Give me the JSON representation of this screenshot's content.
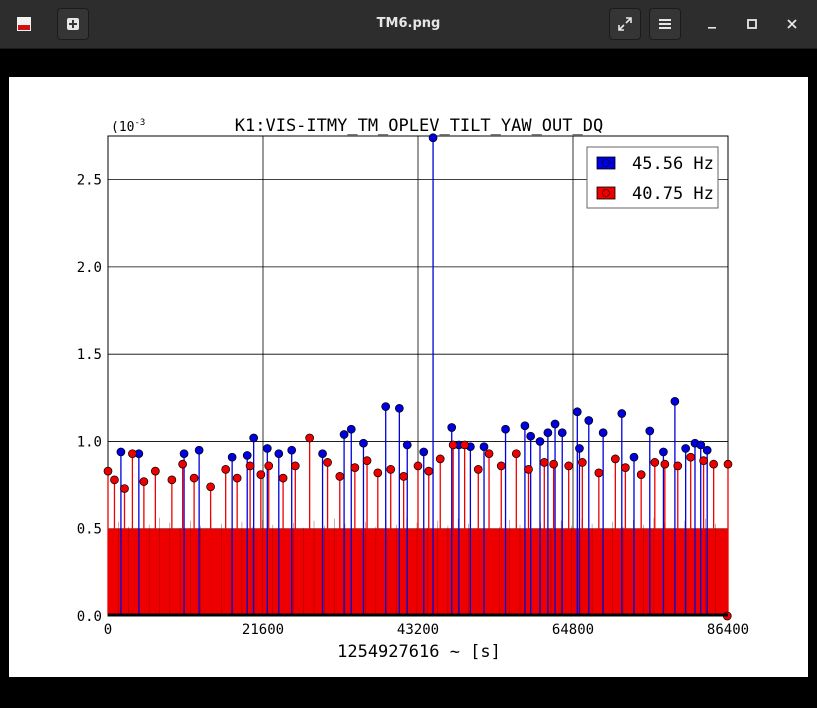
{
  "window": {
    "title": "TM6.png",
    "buttons": {
      "image_icon": "image-icon",
      "new": "plus-box-icon",
      "fullscreen": "expand-icon",
      "menu": "hamburger-icon",
      "minimize": "minimize-icon",
      "maximize": "maximize-icon",
      "close": "close-icon"
    }
  },
  "colors": {
    "titlebar": "#2d2d2d",
    "viewer_background": "#000000",
    "series_blue": "#0000dd",
    "series_red": "#ee0000"
  },
  "chart_data": {
    "type": "scatter",
    "subtype": "stem",
    "title": "K1:VIS-ITMY_TM_OPLEV_TILT_YAW_OUT_DQ",
    "xlabel": "1254927616 ~ [s]",
    "ylabel": "",
    "y_scale_label": "(10",
    "y_scale_exp": "-3",
    "xlim": [
      0,
      86400
    ],
    "ylim": [
      0,
      2.75
    ],
    "xticks": [
      0,
      21600,
      43200,
      64800,
      86400
    ],
    "xtick_labels": [
      "0",
      "21600",
      "43200",
      "64800",
      "86400"
    ],
    "yticks": [
      0,
      0.5,
      1.0,
      1.5,
      2.0,
      2.5
    ],
    "ytick_labels": [
      "0.0",
      "0.5",
      "1.0",
      "1.5",
      "2.0",
      "2.5"
    ],
    "grid": true,
    "legend_position": "top-right",
    "series": [
      {
        "name": "45.56 Hz",
        "color": "#0000dd",
        "x": [
          1800,
          4300,
          10600,
          12700,
          17300,
          19400,
          20300,
          22200,
          23800,
          25600,
          29900,
          32900,
          33900,
          35600,
          38700,
          40600,
          41700,
          44000,
          45300,
          47900,
          48900,
          50500,
          52400,
          55400,
          58100,
          58900,
          60200,
          61300,
          62300,
          63300,
          65400,
          65700,
          67000,
          69000,
          71600,
          73300,
          75500,
          77400,
          79000,
          80500,
          81800,
          82600,
          83500
        ],
        "y": [
          0.94,
          0.93,
          0.93,
          0.95,
          0.91,
          0.92,
          1.02,
          0.96,
          0.93,
          0.95,
          0.93,
          1.04,
          1.07,
          0.99,
          1.2,
          1.19,
          0.98,
          0.94,
          2.74,
          1.08,
          0.98,
          0.97,
          0.97,
          1.07,
          1.09,
          1.03,
          1.0,
          1.05,
          1.1,
          1.05,
          1.17,
          0.96,
          1.12,
          1.05,
          1.16,
          0.91,
          1.06,
          0.94,
          1.23,
          0.96,
          0.99,
          0.98,
          0.95
        ]
      },
      {
        "name": "40.75 Hz",
        "color": "#ee0000",
        "x": [
          0,
          900,
          2300,
          3400,
          5000,
          6600,
          8900,
          10400,
          12000,
          14300,
          16400,
          18000,
          19800,
          21300,
          22400,
          24400,
          26100,
          28100,
          30600,
          32300,
          34400,
          36100,
          37600,
          39400,
          41200,
          43200,
          44700,
          46300,
          48100,
          49700,
          51600,
          53100,
          54800,
          56900,
          58600,
          60800,
          62100,
          64200,
          66100,
          68400,
          70700,
          72100,
          74300,
          76200,
          77600,
          79400,
          81200,
          83000,
          84400,
          86400,
          86300
        ],
        "y": [
          0.83,
          0.78,
          0.73,
          0.93,
          0.77,
          0.83,
          0.78,
          0.87,
          0.79,
          0.74,
          0.84,
          0.79,
          0.86,
          0.81,
          0.86,
          0.79,
          0.86,
          1.02,
          0.88,
          0.8,
          0.85,
          0.89,
          0.82,
          0.84,
          0.8,
          0.86,
          0.83,
          0.9,
          0.98,
          0.98,
          0.84,
          0.93,
          0.86,
          0.93,
          0.84,
          0.88,
          0.87,
          0.86,
          0.88,
          0.82,
          0.9,
          0.85,
          0.81,
          0.88,
          0.87,
          0.86,
          0.91,
          0.89,
          0.87,
          0.87,
          0.0
        ]
      }
    ],
    "band": {
      "description": "dense red stems filling 0 to ~0.5",
      "top": 0.5
    }
  }
}
